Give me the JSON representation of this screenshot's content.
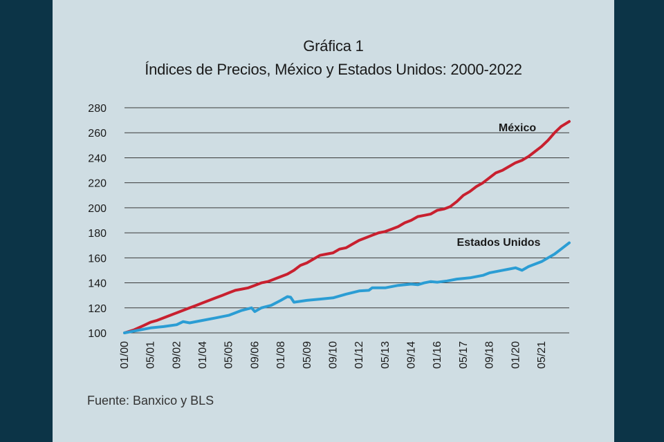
{
  "chart_data": {
    "type": "line",
    "title": "Gráfica 1",
    "subtitle": "Índices de Precios, México y Estados Unidos: 2000-2022",
    "xlabel": "",
    "ylabel": "",
    "ylim": [
      100,
      280
    ],
    "yticks": [
      100,
      120,
      140,
      160,
      180,
      200,
      220,
      240,
      260,
      280
    ],
    "grid": true,
    "xtick_labels": [
      {
        "label": "01/00",
        "t": 0
      },
      {
        "label": "05/01",
        "t": 16
      },
      {
        "label": "09/02",
        "t": 32
      },
      {
        "label": "01/04",
        "t": 48
      },
      {
        "label": "05/05",
        "t": 64
      },
      {
        "label": "09/06",
        "t": 80
      },
      {
        "label": "01/08",
        "t": 96
      },
      {
        "label": "05/09",
        "t": 112
      },
      {
        "label": "09/10",
        "t": 128
      },
      {
        "label": "01/12",
        "t": 144
      },
      {
        "label": "05/13",
        "t": 160
      },
      {
        "label": "09/14",
        "t": 176
      },
      {
        "label": "01/16",
        "t": 192
      },
      {
        "label": "05/17",
        "t": 208
      },
      {
        "label": "09/18",
        "t": 224
      },
      {
        "label": "01/20",
        "t": 240
      },
      {
        "label": "05/21",
        "t": 256
      }
    ],
    "x_max": 273,
    "series": [
      {
        "name": "México",
        "color": "#c8202f",
        "points": [
          [
            0,
            100
          ],
          [
            6,
            102.5
          ],
          [
            12,
            106
          ],
          [
            16,
            108.5
          ],
          [
            20,
            110
          ],
          [
            24,
            112
          ],
          [
            28,
            114
          ],
          [
            32,
            116
          ],
          [
            36,
            118
          ],
          [
            40,
            120
          ],
          [
            44,
            122
          ],
          [
            48,
            124
          ],
          [
            52,
            126
          ],
          [
            56,
            128
          ],
          [
            60,
            130
          ],
          [
            64,
            132
          ],
          [
            68,
            134
          ],
          [
            72,
            135
          ],
          [
            76,
            136
          ],
          [
            80,
            138
          ],
          [
            84,
            140
          ],
          [
            88,
            141
          ],
          [
            92,
            143
          ],
          [
            96,
            145
          ],
          [
            100,
            147
          ],
          [
            104,
            150
          ],
          [
            108,
            154
          ],
          [
            112,
            156
          ],
          [
            116,
            159
          ],
          [
            120,
            162
          ],
          [
            124,
            163
          ],
          [
            128,
            164
          ],
          [
            132,
            167
          ],
          [
            136,
            168
          ],
          [
            140,
            171
          ],
          [
            144,
            174
          ],
          [
            148,
            176
          ],
          [
            152,
            178
          ],
          [
            156,
            180
          ],
          [
            160,
            181
          ],
          [
            164,
            183
          ],
          [
            168,
            185
          ],
          [
            172,
            188
          ],
          [
            176,
            190
          ],
          [
            180,
            193
          ],
          [
            184,
            194
          ],
          [
            188,
            195
          ],
          [
            192,
            198
          ],
          [
            196,
            199
          ],
          [
            200,
            201
          ],
          [
            204,
            205
          ],
          [
            208,
            210
          ],
          [
            212,
            213
          ],
          [
            216,
            217
          ],
          [
            220,
            220
          ],
          [
            224,
            224
          ],
          [
            228,
            228
          ],
          [
            232,
            230
          ],
          [
            236,
            233
          ],
          [
            240,
            236
          ],
          [
            244,
            238
          ],
          [
            248,
            241
          ],
          [
            252,
            245
          ],
          [
            256,
            249
          ],
          [
            260,
            254
          ],
          [
            264,
            260
          ],
          [
            268,
            265
          ],
          [
            273,
            269
          ]
        ]
      },
      {
        "name": "Estados Unidos",
        "color": "#2b9dd4",
        "points": [
          [
            0,
            100
          ],
          [
            8,
            102
          ],
          [
            16,
            104
          ],
          [
            24,
            105
          ],
          [
            32,
            106.5
          ],
          [
            36,
            109
          ],
          [
            40,
            108
          ],
          [
            48,
            110
          ],
          [
            56,
            112
          ],
          [
            64,
            114
          ],
          [
            72,
            118
          ],
          [
            78,
            120
          ],
          [
            80,
            117
          ],
          [
            84,
            120
          ],
          [
            90,
            122
          ],
          [
            96,
            126
          ],
          [
            100,
            129
          ],
          [
            102,
            128.5
          ],
          [
            104,
            124.5
          ],
          [
            112,
            126
          ],
          [
            120,
            127
          ],
          [
            128,
            128
          ],
          [
            136,
            131
          ],
          [
            144,
            133.5
          ],
          [
            150,
            134
          ],
          [
            152,
            136
          ],
          [
            160,
            136
          ],
          [
            168,
            138
          ],
          [
            176,
            139
          ],
          [
            180,
            138.5
          ],
          [
            184,
            140
          ],
          [
            188,
            141
          ],
          [
            192,
            140.5
          ],
          [
            198,
            141.5
          ],
          [
            204,
            143
          ],
          [
            212,
            144
          ],
          [
            220,
            146
          ],
          [
            224,
            148
          ],
          [
            232,
            150
          ],
          [
            236,
            151
          ],
          [
            240,
            152
          ],
          [
            244,
            150
          ],
          [
            248,
            153
          ],
          [
            252,
            155
          ],
          [
            256,
            157
          ],
          [
            260,
            160
          ],
          [
            264,
            163
          ],
          [
            268,
            167
          ],
          [
            273,
            172
          ]
        ]
      }
    ],
    "annotations": [
      {
        "text": "México",
        "series": "México"
      },
      {
        "text": "Estados Unidos",
        "series": "Estados Unidos"
      }
    ]
  },
  "source": "Fuente: Banxico y BLS"
}
